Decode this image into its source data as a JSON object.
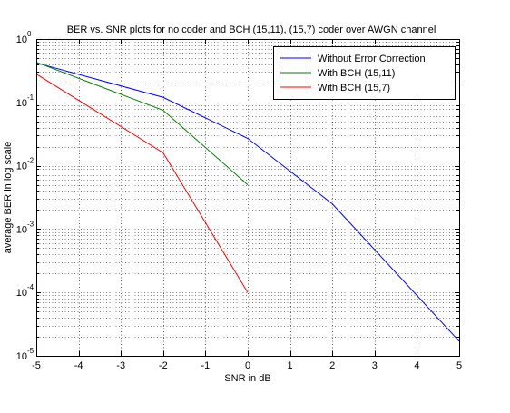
{
  "chart_data": {
    "type": "line",
    "title": "BER vs. SNR plots for no coder and BCH (15,11), (15,7) coder over AWGN channel",
    "xlabel": "SNR in dB",
    "ylabel": "average BER in log scale",
    "xlim": [
      -5,
      5
    ],
    "ylim": [
      1e-05,
      1
    ],
    "yscale": "log",
    "grid": true,
    "legend_position": "top-right",
    "xticks": [
      -5,
      -4,
      -3,
      -2,
      -1,
      0,
      1,
      2,
      3,
      4,
      5
    ],
    "xtick_labels": [
      "-5",
      "-4",
      "-3",
      "-2",
      "-1",
      "0",
      "1",
      "2",
      "3",
      "4",
      "5"
    ],
    "yticks": [
      1e-05,
      0.0001,
      0.001,
      0.01,
      0.1,
      1
    ],
    "ytick_labels": [
      {
        "base": "10",
        "exp": "-5"
      },
      {
        "base": "10",
        "exp": "-4"
      },
      {
        "base": "10",
        "exp": "-3"
      },
      {
        "base": "10",
        "exp": "-2"
      },
      {
        "base": "10",
        "exp": "-1"
      },
      {
        "base": "10",
        "exp": "0"
      }
    ],
    "series": [
      {
        "name": "Without Error Correction",
        "color": "#0000ff",
        "x": [
          -5,
          -2,
          0,
          2,
          5
        ],
        "y": [
          0.42,
          0.12,
          0.027,
          0.0025,
          1.7e-05
        ]
      },
      {
        "name": "With BCH (15,11)",
        "color": "#008000",
        "x": [
          -5,
          -2,
          0
        ],
        "y": [
          0.43,
          0.075,
          0.005
        ]
      },
      {
        "name": "With BCH (15,7)",
        "color": "#ff0000",
        "x": [
          -5,
          -2,
          0
        ],
        "y": [
          0.28,
          0.016,
          0.0001
        ]
      }
    ]
  }
}
